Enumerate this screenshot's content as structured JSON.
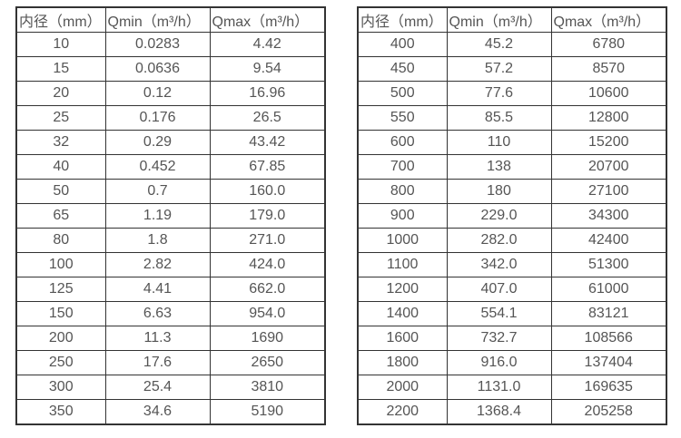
{
  "page": {
    "background_color": "#ffffff",
    "border_color": "#333333",
    "text_color": "#555555"
  },
  "tables": [
    {
      "name": "flow-table-small-diameters",
      "headers": [
        "内径（mm）",
        "Qmin（m³/h）",
        "Qmax（m³/h）"
      ],
      "rows": [
        [
          "10",
          "0.0283",
          "4.42"
        ],
        [
          "15",
          "0.0636",
          "9.54"
        ],
        [
          "20",
          "0.12",
          "16.96"
        ],
        [
          "25",
          "0.176",
          "26.5"
        ],
        [
          "32",
          "0.29",
          "43.42"
        ],
        [
          "40",
          "0.452",
          "67.85"
        ],
        [
          "50",
          "0.7",
          "160.0"
        ],
        [
          "65",
          "1.19",
          "179.0"
        ],
        [
          "80",
          "1.8",
          "271.0"
        ],
        [
          "100",
          "2.82",
          "424.0"
        ],
        [
          "125",
          "4.41",
          "662.0"
        ],
        [
          "150",
          "6.63",
          "954.0"
        ],
        [
          "200",
          "11.3",
          "1690"
        ],
        [
          "250",
          "17.6",
          "2650"
        ],
        [
          "300",
          "25.4",
          "3810"
        ],
        [
          "350",
          "34.6",
          "5190"
        ]
      ]
    },
    {
      "name": "flow-table-large-diameters",
      "headers": [
        "内径（mm）",
        "Qmin（m³/h）",
        "Qmax（m³/h）"
      ],
      "rows": [
        [
          "400",
          "45.2",
          "6780"
        ],
        [
          "450",
          "57.2",
          "8570"
        ],
        [
          "500",
          "77.6",
          "10600"
        ],
        [
          "550",
          "85.5",
          "12800"
        ],
        [
          "600",
          "110",
          "15200"
        ],
        [
          "700",
          "138",
          "20700"
        ],
        [
          "800",
          "180",
          "27100"
        ],
        [
          "900",
          "229.0",
          "34300"
        ],
        [
          "1000",
          "282.0",
          "42400"
        ],
        [
          "1100",
          "342.0",
          "51300"
        ],
        [
          "1200",
          "407.0",
          "61000"
        ],
        [
          "1400",
          "554.1",
          "83121"
        ],
        [
          "1600",
          "732.7",
          "108566"
        ],
        [
          "1800",
          "916.0",
          "137404"
        ],
        [
          "2000",
          "1131.0",
          "169635"
        ],
        [
          "2200",
          "1368.4",
          "205258"
        ]
      ]
    }
  ]
}
